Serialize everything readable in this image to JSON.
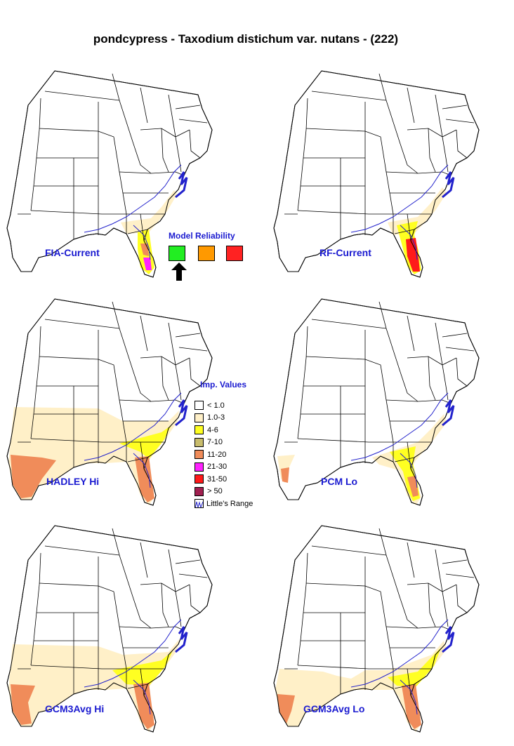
{
  "title": "pondcypress - Taxodium distichum var. nutans - (222)",
  "maps": [
    {
      "label": "FIA-Current"
    },
    {
      "label": "RF-Current"
    },
    {
      "label": "HADLEY Hi"
    },
    {
      "label": "PCM Lo"
    },
    {
      "label": "GCM3Avg Hi"
    },
    {
      "label": "GCM3Avg Lo"
    }
  ],
  "reliability": {
    "title": "Model Reliability",
    "colors": [
      "#22ee22",
      "#ff9900",
      "#ff2222"
    ],
    "selected_index": 0
  },
  "legend": {
    "title": "Imp. Values",
    "items": [
      {
        "label": "< 1.0",
        "color": "#ffffff"
      },
      {
        "label": "1.0-3",
        "color": "#fff0c8"
      },
      {
        "label": "4-6",
        "color": "#ffff22"
      },
      {
        "label": "7-10",
        "color": "#c8bc6c"
      },
      {
        "label": "11-20",
        "color": "#f08c5a"
      },
      {
        "label": "21-30",
        "color": "#ff22ff"
      },
      {
        "label": "31-50",
        "color": "#ff1a1a"
      },
      {
        "label": "> 50",
        "color": "#a02050"
      }
    ],
    "range_label": "Little's Range",
    "range_color": "#2222cc"
  }
}
